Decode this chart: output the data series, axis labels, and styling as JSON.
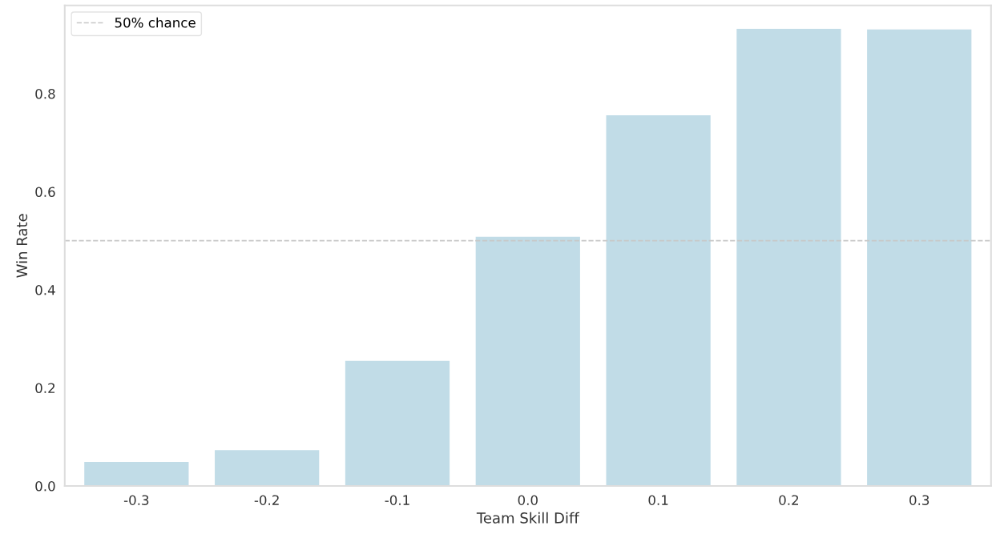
{
  "chart_data": {
    "type": "bar",
    "xlabel": "Team Skill Diff",
    "ylabel": "Win Rate",
    "categories": [
      "-0.3",
      "-0.2",
      "-0.1",
      "0.0",
      "0.1",
      "0.2",
      "0.3"
    ],
    "values": [
      0.049,
      0.073,
      0.255,
      0.508,
      0.756,
      0.932,
      0.931
    ],
    "color": "#c1dce7",
    "ylim": [
      0,
      0.98
    ],
    "yticks": [
      {
        "value": 0,
        "label": "0.0"
      },
      0.2,
      0.4,
      0.6,
      0.8
    ],
    "ref_lines": [
      {
        "axis": "y",
        "value": 0.5,
        "label": "50% chance",
        "color": "#c8c8c8",
        "line_style": "dashed"
      }
    ],
    "grid": false,
    "legend": "top left"
  }
}
